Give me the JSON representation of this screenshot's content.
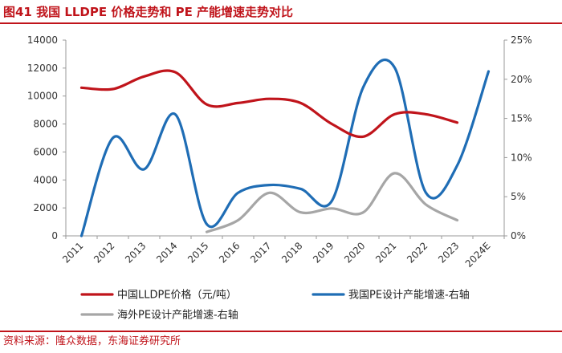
{
  "header": {
    "title": "图41  我国 LLDPE 价格走势和 PE 产能增速走势对比"
  },
  "footer": {
    "source": "资料来源：隆众数据，东海证券研究所"
  },
  "colors": {
    "red": "#c0141b",
    "blue": "#1f6db5",
    "gray": "#a6a6a6",
    "axis": "#999999"
  },
  "chart_data": {
    "type": "line",
    "title": "我国 LLDPE 价格走势和 PE 产能增速走势对比",
    "categories": [
      "2011",
      "2012",
      "2013",
      "2014",
      "2015",
      "2016",
      "2017",
      "2018",
      "2019",
      "2020",
      "2021",
      "2022",
      "2023",
      "2024E"
    ],
    "left_axis": {
      "ylim": [
        0,
        14000
      ],
      "ticks": [
        "0",
        "2000",
        "4000",
        "6000",
        "8000",
        "10000",
        "12000",
        "14000"
      ]
    },
    "right_axis": {
      "ylim": [
        0,
        25
      ],
      "ticks": [
        "0%",
        "5%",
        "10%",
        "15%",
        "20%",
        "25%"
      ]
    },
    "series": [
      {
        "name": "中国LLDPE价格（元/吨）",
        "axis": "left",
        "color": "red",
        "values": [
          10600,
          10500,
          11400,
          11700,
          9400,
          9500,
          9800,
          9500,
          8000,
          7100,
          8700,
          8700,
          8100,
          null
        ]
      },
      {
        "name": "我国PE设计产能增速-右轴",
        "axis": "right",
        "color": "blue",
        "values": [
          0,
          12.5,
          8.5,
          15.5,
          1.5,
          5.5,
          6.5,
          6.0,
          4.5,
          19,
          21.5,
          5.5,
          9,
          21
        ]
      },
      {
        "name": "海外PE设计产能增速-右轴",
        "axis": "right",
        "color": "gray",
        "values": [
          null,
          null,
          null,
          null,
          0.5,
          2.0,
          5.5,
          3.0,
          3.5,
          3.0,
          8.0,
          4.0,
          2.0,
          null
        ]
      }
    ]
  }
}
